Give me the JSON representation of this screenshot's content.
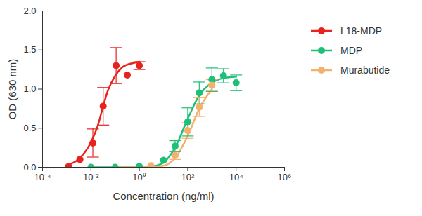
{
  "chart_data": {
    "type": "scatter",
    "x_label": "Concentration (ng/ml)",
    "y_label": "OD (630 nm)",
    "log": "x",
    "grid": false,
    "legend": "right",
    "marker": "circle",
    "xlim": [
      0.0001,
      1000000
    ],
    "xticks": [
      {
        "value": 0.0001,
        "label": "10⁻⁴"
      },
      {
        "value": 0.01,
        "label": "10⁻²"
      },
      {
        "value": 1,
        "label": "10⁰"
      },
      {
        "value": 100,
        "label": "10²"
      },
      {
        "value": 10000,
        "label": "10⁴"
      },
      {
        "value": 1000000,
        "label": "10⁶"
      }
    ],
    "ylim": [
      0,
      2
    ],
    "yticks": [
      {
        "value": 0,
        "label": "0.0"
      },
      0.5,
      {
        "value": 1,
        "label": "1.0"
      },
      1.5,
      {
        "value": 2,
        "label": "2.0"
      }
    ],
    "series": [
      {
        "name": "L18-MDP",
        "color": "#e8231e",
        "x": [
          0.0012,
          0.0035,
          0.012,
          0.032,
          0.11,
          0.32,
          1
        ],
        "values": [
          0.01,
          0.1,
          0.31,
          0.78,
          1.3,
          1.18,
          1.3
        ],
        "error": [
          null,
          null,
          0.18,
          0.24,
          0.23,
          null,
          0.05
        ],
        "curve_x": [
          0.001,
          0.003,
          0.01,
          0.02,
          0.03,
          0.05,
          0.1,
          0.2,
          0.5,
          1
        ],
        "curve_values": [
          0.03,
          0.1,
          0.32,
          0.55,
          0.75,
          0.98,
          1.17,
          1.28,
          1.33,
          1.35
        ]
      },
      {
        "name": "MDP",
        "color": "#1fbf78",
        "x": [
          0.01,
          0.1,
          1,
          10,
          30,
          100,
          300,
          1000,
          3000,
          10000
        ],
        "values": [
          0,
          0,
          0.01,
          0.09,
          0.27,
          0.58,
          0.95,
          1.12,
          1.17,
          1.08
        ],
        "error": [
          null,
          null,
          null,
          null,
          0.07,
          0.18,
          0.14,
          0.15,
          0.09,
          0.1
        ],
        "curve_x": [
          0.01,
          1,
          5,
          10,
          30,
          100,
          300,
          1000,
          3000,
          10000
        ],
        "curve_values": [
          0,
          0,
          0.02,
          0.06,
          0.25,
          0.62,
          0.92,
          1.08,
          1.14,
          1.16
        ]
      },
      {
        "name": "Murabutide",
        "color": "#f5b06e",
        "x": [
          3,
          30,
          100,
          300,
          1000
        ],
        "values": [
          0.02,
          0.15,
          0.47,
          0.77,
          1.05
        ],
        "error": [
          null,
          0.05,
          0.1,
          0.12,
          0.07
        ],
        "curve_x": [
          0.1,
          1,
          10,
          30,
          100,
          300,
          1000
        ],
        "curve_values": [
          0,
          0,
          0.02,
          0.12,
          0.4,
          0.75,
          1.0
        ]
      }
    ]
  }
}
